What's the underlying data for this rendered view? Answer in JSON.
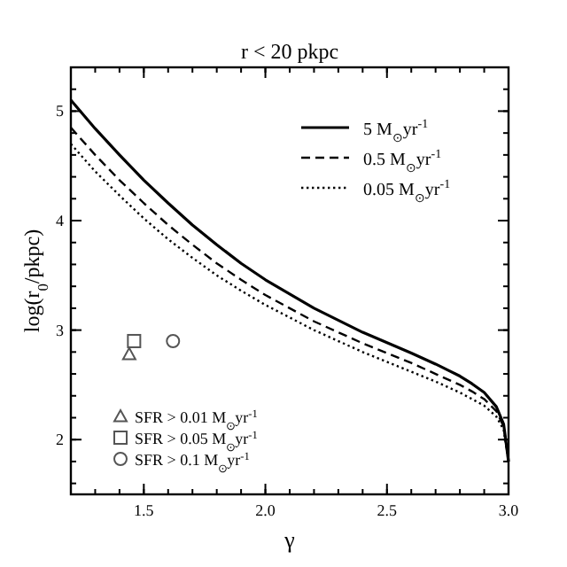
{
  "chart_data": {
    "type": "line",
    "title": "r < 20 pkpc",
    "xlabel": "γ",
    "ylabel": "log(r$_{0}$/pkpc)",
    "xlim": [
      1.2,
      3.0
    ],
    "ylim": [
      1.5,
      5.4
    ],
    "xticks": [
      {
        "value": 1.5,
        "label": "1.5"
      },
      {
        "value": 2.0,
        "label": "2.0"
      },
      {
        "value": 2.5,
        "label": "2.5"
      },
      {
        "value": 3.0,
        "label": "3.0"
      }
    ],
    "yticks": [
      2,
      3,
      4,
      5
    ],
    "legend": [
      "top right",
      "bottom left"
    ],
    "series": [
      {
        "name": "5 M$_{⊙}$yr$^{-1}$",
        "color": "#000000",
        "line_style": "solid",
        "x": [
          1.2,
          1.3,
          1.4,
          1.5,
          1.6,
          1.7,
          1.8,
          1.9,
          2.0,
          2.2,
          2.4,
          2.6,
          2.7,
          2.8,
          2.85,
          2.9,
          2.95,
          2.98,
          3.0
        ],
        "values": [
          5.1,
          4.84,
          4.6,
          4.37,
          4.16,
          3.96,
          3.78,
          3.61,
          3.46,
          3.2,
          2.98,
          2.79,
          2.69,
          2.58,
          2.51,
          2.43,
          2.3,
          2.14,
          1.8
        ]
      },
      {
        "name": "0.5 M$_{⊙}$yr$^{-1}$",
        "color": "#000000",
        "line_style": "dashed",
        "x": [
          1.2,
          1.3,
          1.4,
          1.5,
          1.6,
          1.7,
          1.8,
          1.9,
          2.0,
          2.2,
          2.4,
          2.6,
          2.7,
          2.8,
          2.85,
          2.9,
          2.95,
          2.98,
          3.0
        ],
        "values": [
          4.85,
          4.6,
          4.37,
          4.16,
          3.96,
          3.78,
          3.61,
          3.46,
          3.32,
          3.08,
          2.88,
          2.7,
          2.6,
          2.5,
          2.44,
          2.37,
          2.26,
          2.12,
          1.8
        ]
      },
      {
        "name": "0.05 M$_{⊙}$yr$^{-1}$",
        "color": "#000000",
        "line_style": "dotted",
        "x": [
          1.2,
          1.3,
          1.4,
          1.5,
          1.6,
          1.7,
          1.8,
          1.9,
          2.0,
          2.2,
          2.4,
          2.6,
          2.7,
          2.8,
          2.85,
          2.9,
          2.95,
          2.98,
          3.0
        ],
        "values": [
          4.7,
          4.45,
          4.23,
          4.02,
          3.83,
          3.66,
          3.5,
          3.36,
          3.23,
          3.0,
          2.8,
          2.62,
          2.53,
          2.43,
          2.37,
          2.31,
          2.21,
          2.09,
          1.8
        ]
      },
      {
        "name": "SFR > 0.01 M$_{⊙}$yr$^{-1}$",
        "type": "scatter",
        "marker": "triangle",
        "color": "#555555",
        "x": [
          1.44
        ],
        "values": [
          2.78
        ]
      },
      {
        "name": "SFR > 0.05 M$_{⊙}$yr$^{-1}$",
        "type": "scatter",
        "marker": "square",
        "color": "#555555",
        "x": [
          1.46
        ],
        "values": [
          2.9
        ]
      },
      {
        "name": "SFR > 0.1 M$_{⊙}$yr$^{-1}$",
        "type": "scatter",
        "marker": "circle",
        "color": "#555555",
        "x": [
          1.62
        ],
        "values": [
          2.9
        ]
      }
    ]
  }
}
